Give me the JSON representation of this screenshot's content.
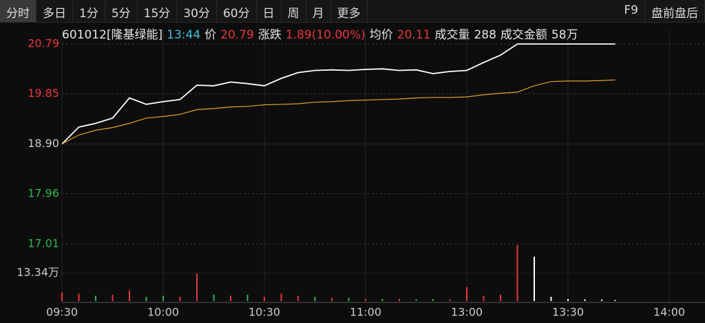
{
  "toolbar": {
    "tabs": [
      "分时",
      "多日",
      "1分",
      "5分",
      "15分",
      "30分",
      "60分",
      "日",
      "周",
      "月",
      "更多"
    ],
    "right": [
      "F9",
      "盘前盘后"
    ]
  },
  "quote": {
    "code": "601012[隆基绿能]",
    "time": "13:44",
    "price_label": "价",
    "price": "20.79",
    "change_label": "涨跌",
    "change": "1.89(10.00%)",
    "avg_label": "均价",
    "avg": "20.11",
    "volume_label": "成交量",
    "volume": "288",
    "amount_label": "成交金额",
    "amount": "58万"
  },
  "chart_data": [
    {
      "type": "line",
      "x": [
        "09:30",
        "09:35",
        "09:40",
        "09:45",
        "09:50",
        "09:55",
        "10:00",
        "10:05",
        "10:10",
        "10:15",
        "10:20",
        "10:25",
        "10:30",
        "10:35",
        "10:40",
        "10:45",
        "10:50",
        "10:55",
        "11:00",
        "11:05",
        "11:10",
        "11:15",
        "11:20",
        "11:25",
        "11:30",
        "13:05",
        "13:10",
        "13:15",
        "13:20",
        "13:25",
        "13:30",
        "13:35",
        "13:40",
        "13:44"
      ],
      "series": [
        {
          "color": "#ffffff",
          "values": [
            18.9,
            19.22,
            19.29,
            19.39,
            19.77,
            19.65,
            19.7,
            19.74,
            20.01,
            20.0,
            20.07,
            20.04,
            20.0,
            20.14,
            20.25,
            20.29,
            20.3,
            20.29,
            20.31,
            20.32,
            20.29,
            20.3,
            20.23,
            20.27,
            20.29,
            20.44,
            20.58,
            20.79,
            20.79,
            20.79,
            20.79,
            20.79,
            20.79,
            20.79
          ]
        },
        {
          "color": "#e0a526",
          "values": [
            18.9,
            19.07,
            19.16,
            19.21,
            19.29,
            19.39,
            19.42,
            19.46,
            19.55,
            19.57,
            19.6,
            19.61,
            19.64,
            19.65,
            19.66,
            19.69,
            19.7,
            19.72,
            19.73,
            19.74,
            19.75,
            19.77,
            19.78,
            19.78,
            19.79,
            19.83,
            19.86,
            19.88,
            20.0,
            20.08,
            20.09,
            20.09,
            20.1,
            20.11
          ]
        }
      ],
      "ylim": [
        17.01,
        20.79
      ],
      "yticks": [
        20.79,
        19.85,
        {
          "value": 18.9,
          "label": "18.90"
        },
        17.96,
        17.01
      ],
      "ytick_colors": [
        "#e8383d",
        "#e8383d",
        "#cccccc",
        "#2db84d",
        "#2db84d"
      ],
      "xticks": [
        "09:30",
        "10:00",
        "10:30",
        "11:00",
        "13:00",
        "13:30",
        "14:00"
      ],
      "grid": true
    },
    {
      "type": "bar",
      "x": [
        "09:30",
        "09:35",
        "09:40",
        "09:45",
        "09:50",
        "09:55",
        "10:00",
        "10:05",
        "10:10",
        "10:15",
        "10:20",
        "10:25",
        "10:30",
        "10:35",
        "10:40",
        "10:45",
        "10:50",
        "10:55",
        "11:00",
        "11:05",
        "11:10",
        "11:15",
        "11:20",
        "11:25",
        "11:30",
        "13:05",
        "13:10",
        "13:15",
        "13:20",
        "13:25",
        "13:30",
        "13:35",
        "13:40",
        "13:44"
      ],
      "values": [
        4.0,
        3.5,
        2.5,
        3.0,
        5.0,
        2.0,
        2.5,
        2.0,
        13.0,
        3.0,
        2.5,
        3.0,
        2.0,
        3.5,
        2.5,
        2.0,
        1.5,
        1.5,
        1.0,
        1.0,
        1.0,
        0.8,
        1.0,
        0.8,
        6.5,
        2.5,
        3.0,
        26.5,
        21.0,
        2.0,
        1.0,
        0.8,
        0.7,
        0.5
      ],
      "colors": [
        "#e8383d",
        "#e8383d",
        "#2db84d",
        "#e8383d",
        "#e8383d",
        "#2db84d",
        "#2db84d",
        "#e8383d",
        "#e8383d",
        "#2db84d",
        "#e8383d",
        "#2db84d",
        "#e8383d",
        "#e8383d",
        "#e8383d",
        "#2db84d",
        "#e8383d",
        "#2db84d",
        "#e8383d",
        "#2db84d",
        "#e8383d",
        "#2db84d",
        "#2db84d",
        "#e8383d",
        "#e8383d",
        "#e8383d",
        "#e8383d",
        "#e8383d",
        "#ffffff",
        "#ffffff",
        "#ffffff",
        "#ffffff",
        "#ffffff",
        "#ffffff"
      ],
      "ylim": [
        0,
        27
      ],
      "yticks": [
        {
          "value": 13.34,
          "label": "13.34万"
        }
      ]
    }
  ]
}
